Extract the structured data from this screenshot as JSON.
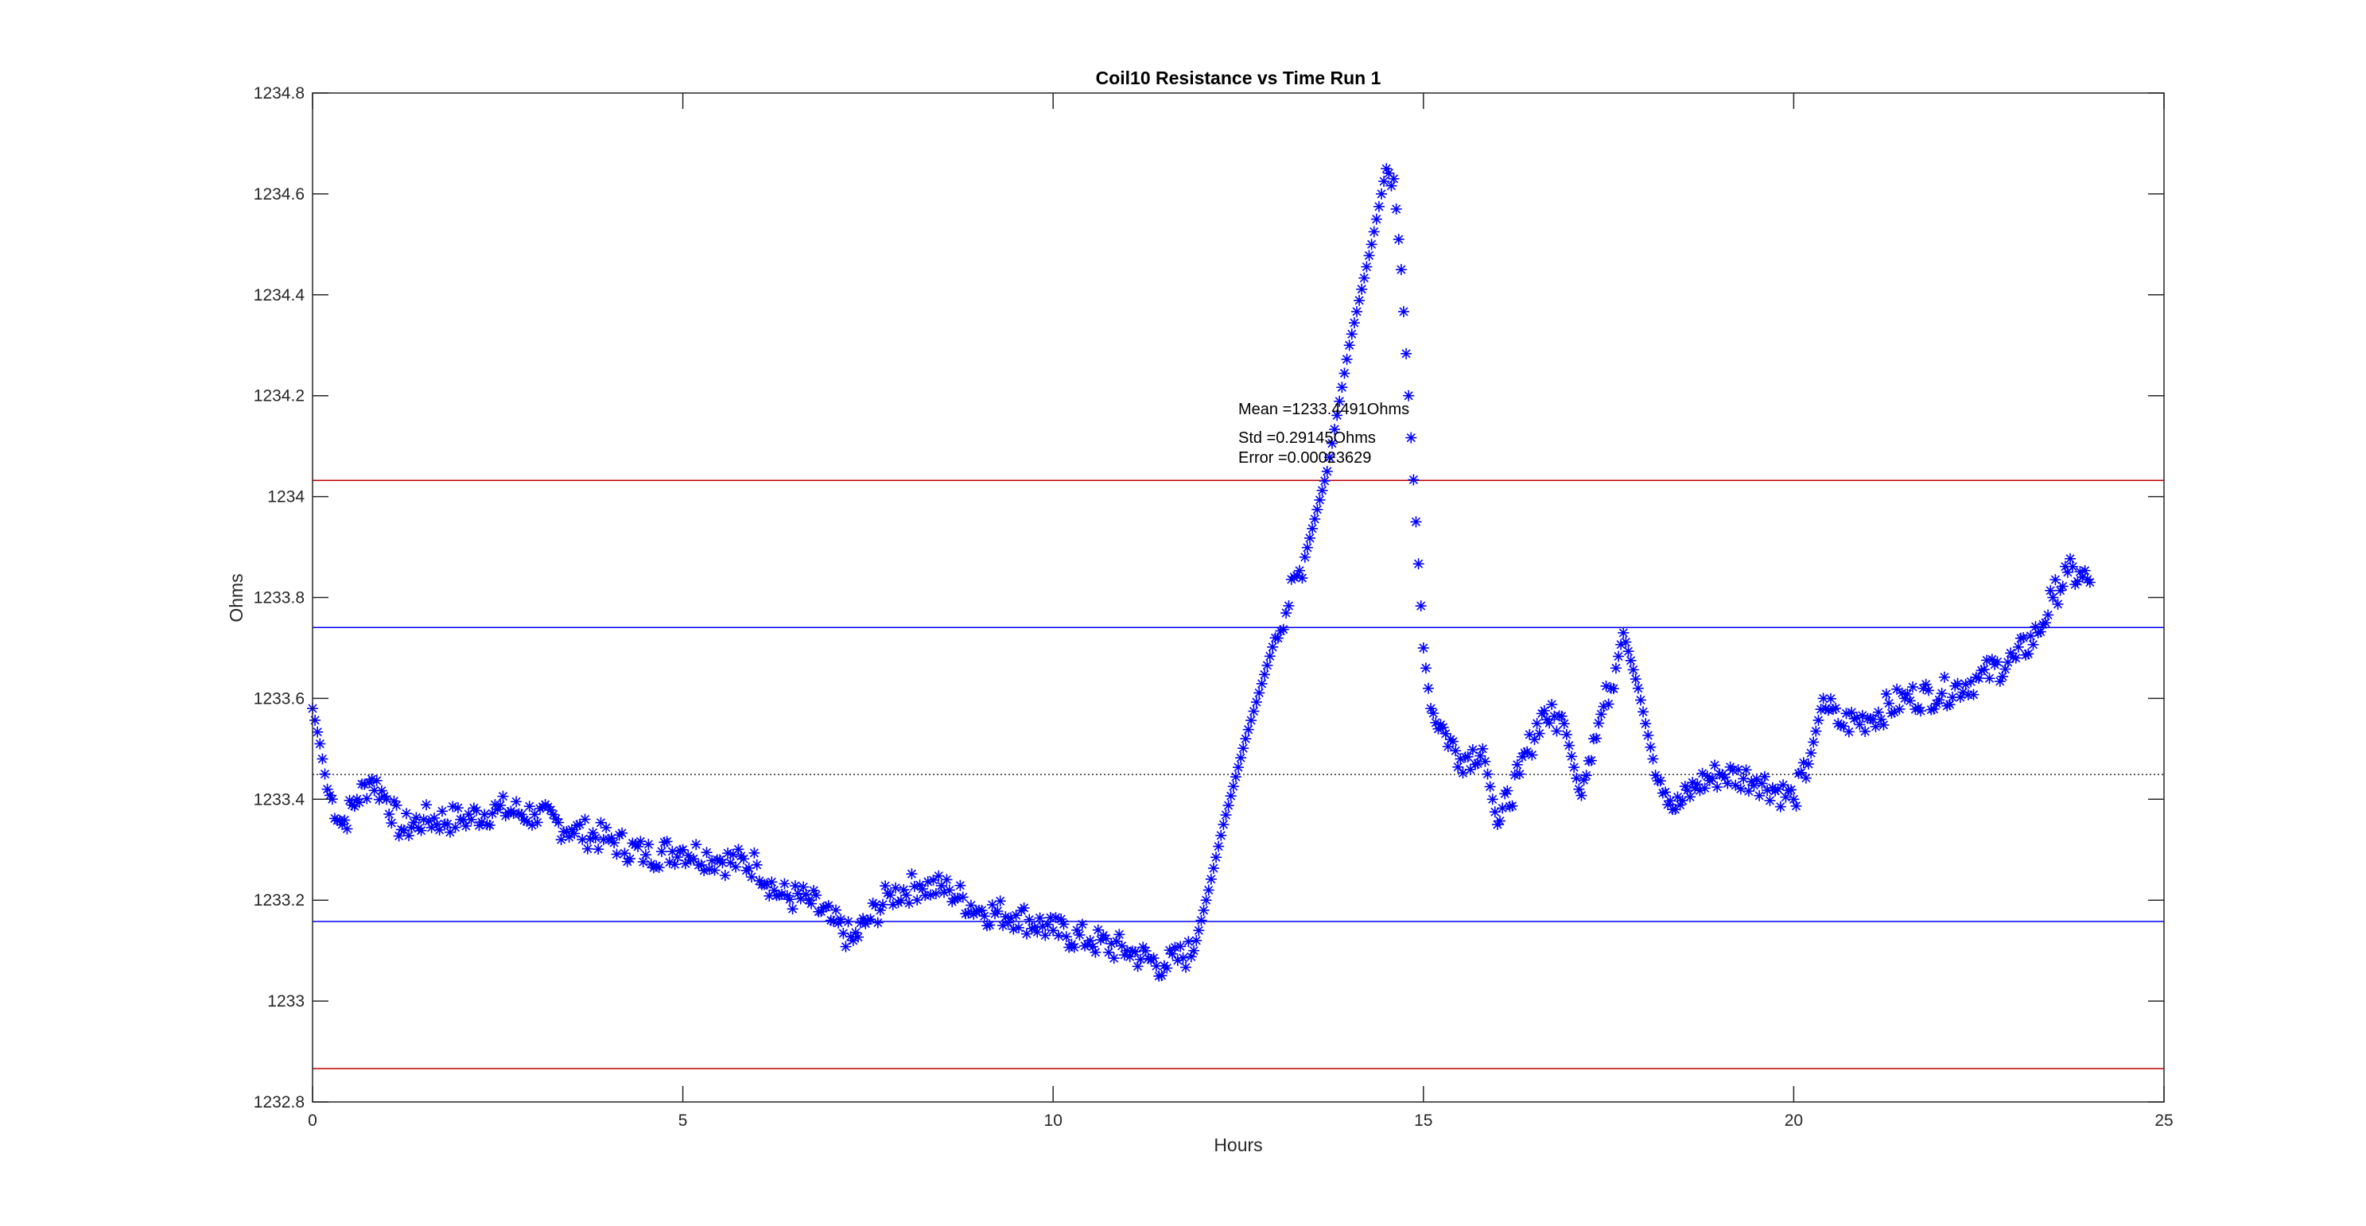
{
  "chart_data": {
    "type": "scatter",
    "title": "Coil10 Resistance vs Time Run 1",
    "xlabel": "Hours",
    "ylabel": "Ohms",
    "xlim": [
      0,
      25
    ],
    "ylim": [
      1232.8,
      1234.8
    ],
    "xticks": [
      "0",
      "5",
      "10",
      "15",
      "20",
      "25"
    ],
    "yticks": [
      "1232.8",
      "1233",
      "1233.2",
      "1233.4",
      "1233.6",
      "1233.8",
      "1234",
      "1234.2",
      "1234.4",
      "1234.6",
      "1234.8"
    ],
    "grid": false,
    "marker": "*",
    "marker_color": "#0000ff",
    "series": [
      {
        "name": "Resistance",
        "x": [
          0,
          0.1,
          0.2,
          0.4,
          0.6,
          0.8,
          1.0,
          1.2,
          1.5,
          2.0,
          2.5,
          3.0,
          3.5,
          4.0,
          4.5,
          5.0,
          5.5,
          6.0,
          6.3,
          6.7,
          7.0,
          7.3,
          7.5,
          7.8,
          8.2,
          8.6,
          9.0,
          9.5,
          10.0,
          10.5,
          11.0,
          11.5,
          11.9,
          12.1,
          12.3,
          12.6,
          13.0,
          13.4,
          13.7,
          14.0,
          14.3,
          14.5,
          14.6,
          14.7,
          14.8,
          14.9,
          15.0,
          15.1,
          15.3,
          15.5,
          15.8,
          16.0,
          16.3,
          16.6,
          16.9,
          17.1,
          17.3,
          17.6,
          17.7,
          17.9,
          18.1,
          18.4,
          18.7,
          19.0,
          19.5,
          20.0,
          20.2,
          20.4,
          20.6,
          21.0,
          21.5,
          22.0,
          22.5,
          23.0,
          23.3,
          23.5,
          23.7,
          24.0
        ],
        "y": [
          1233.58,
          1233.51,
          1233.42,
          1233.35,
          1233.4,
          1233.44,
          1233.4,
          1233.34,
          1233.36,
          1233.36,
          1233.38,
          1233.37,
          1233.34,
          1233.32,
          1233.29,
          1233.3,
          1233.28,
          1233.27,
          1233.21,
          1233.2,
          1233.16,
          1233.12,
          1233.16,
          1233.21,
          1233.23,
          1233.22,
          1233.18,
          1233.17,
          1233.14,
          1233.12,
          1233.1,
          1233.07,
          1233.1,
          1233.22,
          1233.35,
          1233.52,
          1233.72,
          1233.88,
          1234.05,
          1234.3,
          1234.5,
          1234.65,
          1234.63,
          1234.45,
          1234.2,
          1233.95,
          1233.7,
          1233.58,
          1233.53,
          1233.48,
          1233.5,
          1233.35,
          1233.45,
          1233.57,
          1233.55,
          1233.42,
          1233.52,
          1233.66,
          1233.73,
          1233.62,
          1233.48,
          1233.38,
          1233.43,
          1233.45,
          1233.44,
          1233.4,
          1233.47,
          1233.6,
          1233.55,
          1233.56,
          1233.6,
          1233.61,
          1233.64,
          1233.68,
          1233.73,
          1233.8,
          1233.85,
          1233.83
        ]
      }
    ],
    "reference_lines": [
      {
        "name": "mean",
        "value": 1233.4491,
        "color": "#000000",
        "style": "dotted"
      },
      {
        "name": "mean+std",
        "value": 1233.7406,
        "color": "#0000ff",
        "style": "solid"
      },
      {
        "name": "mean-std",
        "value": 1233.1577,
        "color": "#0000ff",
        "style": "solid"
      },
      {
        "name": "mean+2std",
        "value": 1234.032,
        "color": "#c00000",
        "style": "solid"
      },
      {
        "name": "mean-2std",
        "value": 1232.8662,
        "color": "#c00000",
        "style": "solid"
      }
    ],
    "annotations": {
      "mean": "Mean =1233.4491Ohms",
      "std": "Std =0.29145Ohms",
      "error": "Error =0.00023629"
    }
  }
}
